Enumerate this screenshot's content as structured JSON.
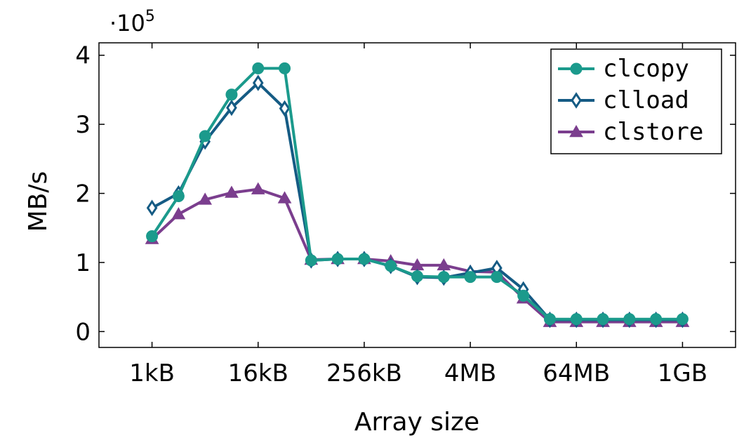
{
  "chart_data": {
    "type": "line",
    "xlabel": "Array size",
    "ylabel": "MB/s",
    "y_multiplier_prefix": "·10",
    "y_multiplier_exponent": "5",
    "x_scale": "log2",
    "x_unit": "kB",
    "x_ticks": [
      {
        "value": 1,
        "label": "1kB"
      },
      {
        "value": 16,
        "label": "16kB"
      },
      {
        "value": 256,
        "label": "256kB"
      },
      {
        "value": 4096,
        "label": "4MB"
      },
      {
        "value": 65536,
        "label": "64MB"
      },
      {
        "value": 1048576,
        "label": "1GB"
      }
    ],
    "y_ticks": [
      0,
      1,
      2,
      3,
      4
    ],
    "xlim": [
      0.25,
      4194304
    ],
    "ylim": [
      -0.23,
      4.18
    ],
    "grid": false,
    "legend_position": "top-right",
    "x": [
      1,
      2,
      4,
      8,
      16,
      32,
      64,
      128,
      256,
      512,
      1024,
      2048,
      4096,
      8192,
      16384,
      32768,
      65536,
      131072,
      262144,
      524288,
      1048576
    ],
    "series": [
      {
        "name": "clcopy",
        "color": "#1b9a8c",
        "marker": "circle",
        "values": [
          1.38,
          1.96,
          2.83,
          3.43,
          3.81,
          3.81,
          1.03,
          1.05,
          1.05,
          0.95,
          0.8,
          0.79,
          0.79,
          0.79,
          0.52,
          0.18,
          0.18,
          0.18,
          0.18,
          0.18,
          0.18
        ]
      },
      {
        "name": "clload",
        "color": "#155b84",
        "marker": "diamond",
        "values": [
          1.79,
          2.0,
          2.75,
          3.24,
          3.6,
          3.23,
          1.03,
          1.05,
          1.05,
          0.95,
          0.79,
          0.78,
          0.85,
          0.92,
          0.61,
          0.17,
          0.17,
          0.17,
          0.17,
          0.17,
          0.17
        ]
      },
      {
        "name": "clstore",
        "color": "#7b3e8e",
        "marker": "triangle",
        "values": [
          1.34,
          1.7,
          1.91,
          2.01,
          2.06,
          1.93,
          1.04,
          1.05,
          1.05,
          1.02,
          0.96,
          0.96,
          0.87,
          0.86,
          0.48,
          0.14,
          0.14,
          0.14,
          0.14,
          0.14,
          0.14
        ]
      }
    ]
  }
}
